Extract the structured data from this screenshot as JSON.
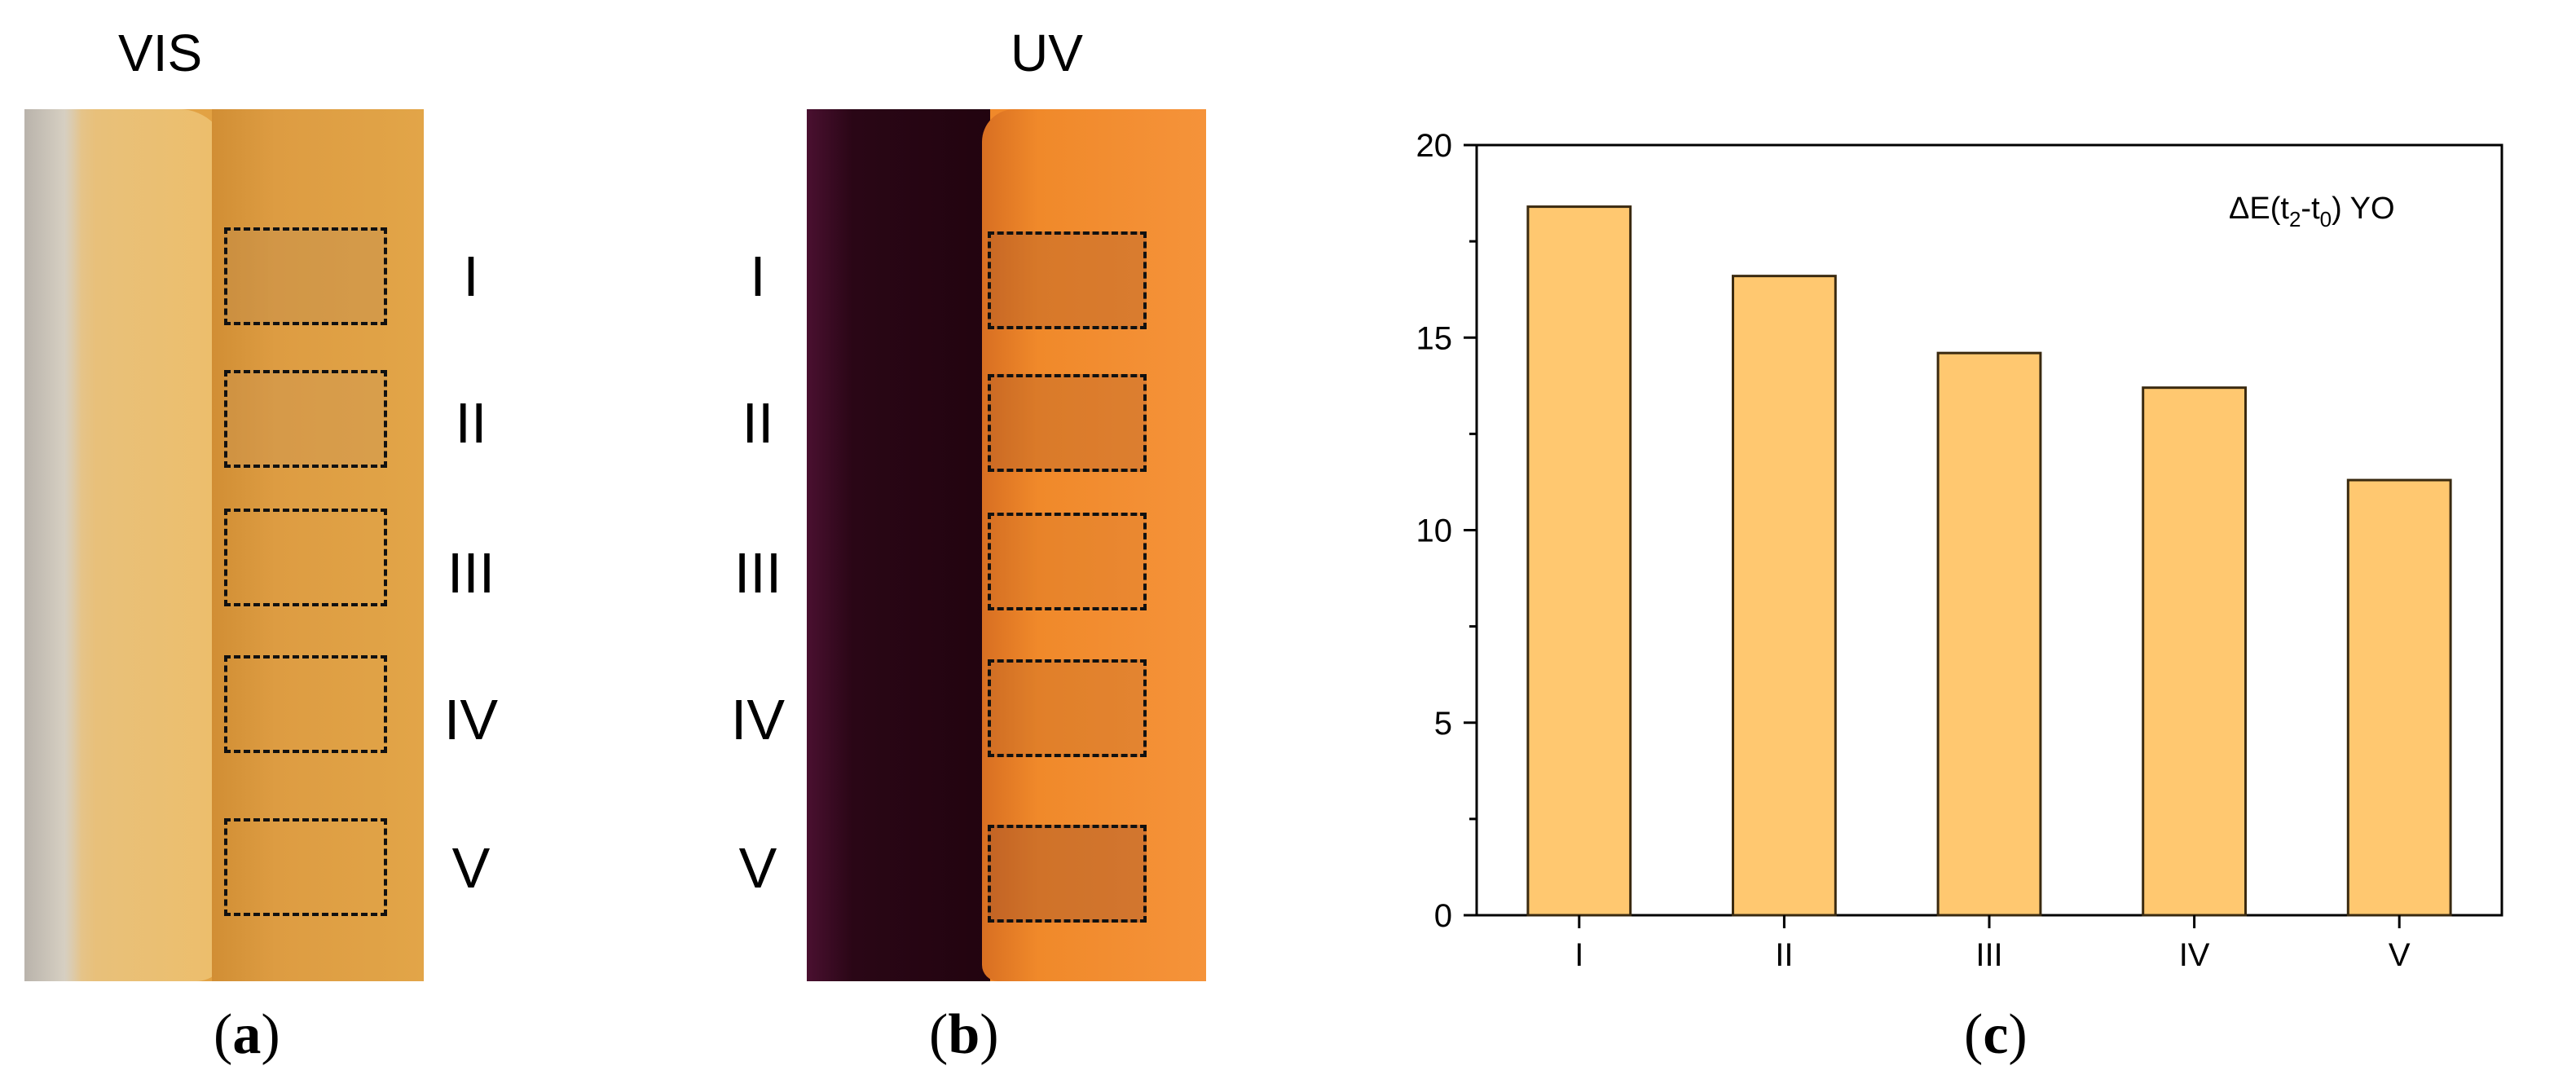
{
  "panels": {
    "a": {
      "title": "VIS",
      "caption_letter": "a",
      "regions": [
        "I",
        "II",
        "III",
        "IV",
        "V"
      ]
    },
    "b": {
      "title": "UV",
      "caption_letter": "b",
      "regions": [
        "I",
        "II",
        "III",
        "IV",
        "V"
      ]
    },
    "c": {
      "caption_letter": "c"
    }
  },
  "colors": {
    "bar_fill": "#FFC870",
    "bar_stroke": "#3a2a10",
    "vis_base": "#E3A445",
    "vis_light": "#EDBE6A",
    "uv_orange": "#F0892A",
    "uv_dark": "#2A0616"
  },
  "chart_data": {
    "type": "bar",
    "categories": [
      "I",
      "II",
      "III",
      "IV",
      "V"
    ],
    "values": [
      18.4,
      16.6,
      14.6,
      13.7,
      11.3
    ],
    "ylim": [
      0,
      20
    ],
    "yticks": [
      0,
      5,
      10,
      15,
      20
    ],
    "xlabel": "",
    "ylabel": "",
    "legend": {
      "text": "ΔE(t",
      "sub1": "2",
      "mid": "-t",
      "sub2": "0",
      "end": ")  YO",
      "position": "top-right"
    }
  }
}
